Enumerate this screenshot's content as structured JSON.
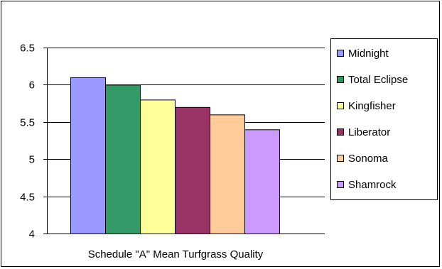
{
  "chart_data": {
    "type": "bar",
    "xlabel": "Schedule \"A\" Mean Turfgrass Quality",
    "ylim": [
      4,
      6.5
    ],
    "yticks": [
      4,
      4.5,
      5,
      5.5,
      6,
      6.5
    ],
    "ytick_labels": [
      "4",
      "4.5",
      "5",
      "5.5",
      "6",
      "6.5"
    ],
    "grid": true,
    "legend_position": "right",
    "series": [
      {
        "name": "Midnight",
        "value": 6.1,
        "color": "#9999ff"
      },
      {
        "name": "Total Eclipse",
        "value": 6.0,
        "color": "#339966"
      },
      {
        "name": "Kingfisher",
        "value": 5.8,
        "color": "#ffff99"
      },
      {
        "name": "Liberator",
        "value": 5.7,
        "color": "#993366"
      },
      {
        "name": "Sonoma",
        "value": 5.6,
        "color": "#ffcc99"
      },
      {
        "name": "Shamrock",
        "value": 5.4,
        "color": "#cc99ff"
      }
    ]
  }
}
